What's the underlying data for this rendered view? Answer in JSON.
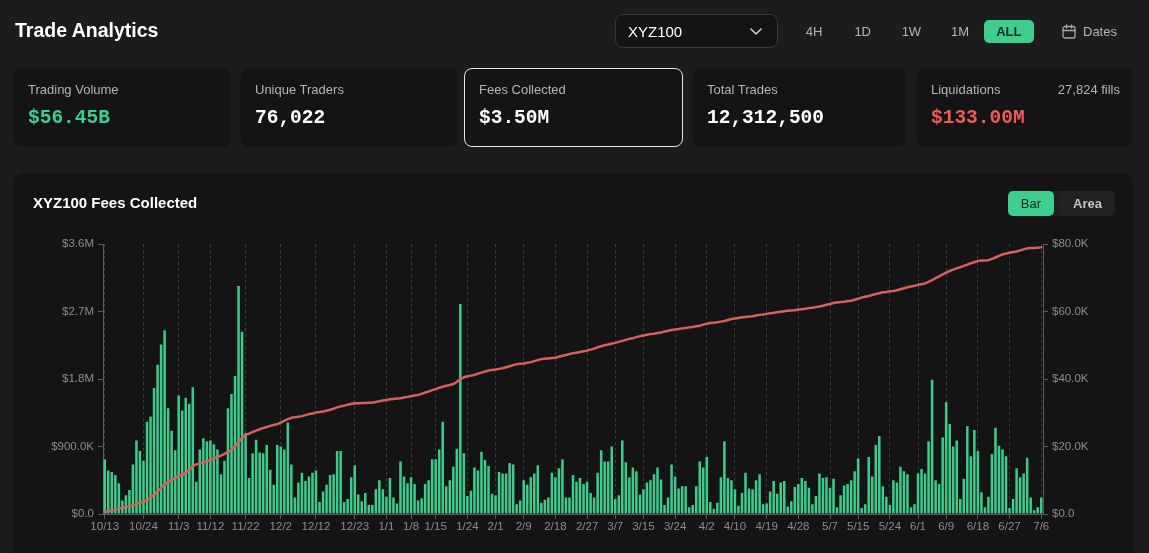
{
  "chart_data": [
    {
      "type": "other",
      "title": "Trade Analytics",
      "annotations": [
        "XYZ100",
        "4H",
        "1D",
        "1W",
        "1M",
        "ALL",
        "Dates"
      ]
    },
    {
      "type": "other",
      "title": "Trading Volume",
      "annotations": [
        "$56.45B"
      ]
    },
    {
      "type": "other",
      "title": "Unique Traders",
      "annotations": [
        "76,022"
      ]
    },
    {
      "type": "other",
      "title": "Fees Collected",
      "annotations": [
        "$3.50M"
      ]
    },
    {
      "type": "other",
      "title": "Total Trades",
      "annotations": [
        "12,312,500"
      ]
    },
    {
      "type": "other",
      "title": "Liquidations",
      "subtitle": "27,824 fills",
      "annotations": [
        "$133.00M"
      ]
    },
    {
      "type": "bar",
      "title": "XYZ100 Fees Collected",
      "annotations": [
        "Bar",
        "Area"
      ],
      "categories": [
        "10/13",
        null,
        null,
        null,
        null,
        null,
        null,
        null,
        null,
        null,
        null,
        "10/24",
        null,
        null,
        null,
        null,
        null,
        null,
        null,
        null,
        null,
        "11/3",
        null,
        null,
        null,
        null,
        null,
        null,
        null,
        null,
        "11/12",
        null,
        null,
        null,
        null,
        null,
        null,
        null,
        null,
        null,
        "11/22",
        null,
        null,
        null,
        null,
        null,
        null,
        null,
        null,
        null,
        "12/2",
        null,
        null,
        null,
        null,
        null,
        null,
        null,
        null,
        null,
        "12/12",
        null,
        null,
        null,
        null,
        null,
        null,
        null,
        null,
        null,
        null,
        "12/23",
        null,
        null,
        null,
        null,
        null,
        null,
        null,
        null,
        "1/1",
        null,
        null,
        null,
        null,
        null,
        null,
        "1/8",
        null,
        null,
        null,
        null,
        null,
        null,
        "1/15",
        null,
        null,
        null,
        null,
        null,
        null,
        null,
        null,
        "1/24",
        null,
        null,
        null,
        null,
        null,
        null,
        null,
        "2/1",
        null,
        null,
        null,
        null,
        null,
        null,
        null,
        "2/9",
        null,
        null,
        null,
        null,
        null,
        null,
        null,
        null,
        "2/18",
        null,
        null,
        null,
        null,
        null,
        null,
        null,
        null,
        "2/27",
        null,
        null,
        null,
        null,
        null,
        null,
        null,
        "3/7",
        null,
        null,
        null,
        null,
        null,
        null,
        null,
        "3/15",
        null,
        null,
        null,
        null,
        null,
        null,
        null,
        null,
        "3/24",
        null,
        null,
        null,
        null,
        null,
        null,
        null,
        null,
        "4/2",
        null,
        null,
        null,
        null,
        null,
        null,
        null,
        "4/10",
        null,
        null,
        null,
        null,
        null,
        null,
        null,
        null,
        "4/19",
        null,
        null,
        null,
        null,
        null,
        null,
        null,
        null,
        "4/28",
        null,
        null,
        null,
        null,
        null,
        null,
        null,
        null,
        "5/7",
        null,
        null,
        null,
        null,
        null,
        null,
        null,
        "5/15",
        null,
        null,
        null,
        null,
        null,
        null,
        null,
        null,
        "5/24",
        null,
        null,
        null,
        null,
        null,
        null,
        null,
        "6/1",
        null,
        null,
        null,
        null,
        null,
        null,
        null,
        "6/9",
        null,
        null,
        null,
        null,
        null,
        null,
        null,
        null,
        "6/18",
        null,
        null,
        null,
        null,
        null,
        null,
        null,
        null,
        "6/27",
        null,
        null,
        null,
        null,
        null,
        null,
        null,
        null,
        "7/6"
      ],
      "series": [
        {
          "type": "bar",
          "color": "#3bcb8b",
          "values": [
            730000,
            580000,
            560000,
            520000,
            410000,
            180000,
            250000,
            320000,
            660000,
            980000,
            840000,
            710000,
            1230000,
            1300000,
            1680000,
            1990000,
            2260000,
            2450000,
            1410000,
            1110000,
            850000,
            1580000,
            1380000,
            1550000,
            1470000,
            1690000,
            430000,
            860000,
            1010000,
            970000,
            980000,
            930000,
            860000,
            530000,
            710000,
            1410000,
            1600000,
            1840000,
            3040000,
            2430000,
            1080000,
            480000,
            810000,
            990000,
            820000,
            810000,
            920000,
            590000,
            390000,
            920000,
            900000,
            860000,
            1220000,
            660000,
            220000,
            420000,
            550000,
            440000,
            500000,
            550000,
            580000,
            160000,
            300000,
            390000,
            520000,
            530000,
            840000,
            840000,
            160000,
            200000,
            490000,
            650000,
            260000,
            170000,
            280000,
            120000,
            120000,
            330000,
            450000,
            330000,
            230000,
            480000,
            220000,
            140000,
            700000,
            500000,
            410000,
            490000,
            400000,
            180000,
            210000,
            400000,
            450000,
            730000,
            730000,
            860000,
            1230000,
            370000,
            450000,
            630000,
            870000,
            2800000,
            810000,
            240000,
            310000,
            620000,
            580000,
            830000,
            720000,
            640000,
            270000,
            250000,
            560000,
            540000,
            540000,
            680000,
            660000,
            130000,
            180000,
            450000,
            390000,
            490000,
            540000,
            650000,
            150000,
            190000,
            220000,
            550000,
            490000,
            610000,
            730000,
            220000,
            220000,
            520000,
            430000,
            480000,
            400000,
            430000,
            280000,
            220000,
            550000,
            850000,
            700000,
            700000,
            900000,
            200000,
            250000,
            980000,
            690000,
            490000,
            620000,
            570000,
            260000,
            330000,
            420000,
            450000,
            530000,
            620000,
            460000,
            120000,
            220000,
            660000,
            500000,
            340000,
            370000,
            370000,
            90000,
            120000,
            370000,
            700000,
            620000,
            760000,
            160000,
            70000,
            150000,
            490000,
            970000,
            480000,
            450000,
            330000,
            110000,
            280000,
            550000,
            340000,
            330000,
            450000,
            530000,
            130000,
            140000,
            300000,
            440000,
            270000,
            420000,
            440000,
            100000,
            170000,
            360000,
            400000,
            480000,
            440000,
            350000,
            130000,
            240000,
            540000,
            480000,
            490000,
            350000,
            470000,
            90000,
            250000,
            380000,
            400000,
            450000,
            570000,
            740000,
            80000,
            130000,
            760000,
            500000,
            920000,
            1040000,
            370000,
            230000,
            120000,
            450000,
            420000,
            630000,
            570000,
            530000,
            90000,
            130000,
            540000,
            600000,
            540000,
            970000,
            1790000,
            450000,
            400000,
            1020000,
            1490000,
            1200000,
            900000,
            980000,
            200000,
            470000,
            1170000,
            770000,
            1120000,
            840000,
            290000,
            90000,
            230000,
            800000,
            1150000,
            910000,
            860000,
            770000,
            80000,
            200000,
            610000,
            490000,
            540000,
            750000,
            220000,
            50000,
            90000,
            220000
          ]
        },
        {
          "type": "line",
          "color": "#d95f5d",
          "axis": "y2",
          "values": [
            500,
            800,
            1000,
            1300,
            1600,
            1800,
            2100,
            2300,
            2600,
            3000,
            3300,
            3700,
            4100,
            4900,
            5700,
            6600,
            7700,
            8800,
            9500,
            10100,
            10700,
            11200,
            11700,
            12200,
            13100,
            14200,
            14700,
            15000,
            15300,
            15600,
            16000,
            16500,
            16900,
            17300,
            17800,
            18400,
            19000,
            20000,
            21300,
            22600,
            23400,
            23800,
            24300,
            24700,
            25100,
            25500,
            25800,
            26100,
            26400,
            26600,
            27100,
            27600,
            28100,
            28500,
            28700,
            28800,
            29000,
            29300,
            29600,
            29800,
            30100,
            30200,
            30400,
            30600,
            30900,
            31200,
            31600,
            31900,
            32100,
            32400,
            32600,
            32800,
            32800,
            32900,
            32900,
            33000,
            33000,
            33200,
            33400,
            33600,
            33800,
            34000,
            34100,
            34200,
            34300,
            34500,
            34700,
            34900,
            35100,
            35300,
            35600,
            36000,
            36300,
            36700,
            37000,
            37400,
            37700,
            38000,
            38200,
            38500,
            39100,
            40000,
            40500,
            40800,
            41000,
            41200,
            41600,
            41900,
            42200,
            42500,
            42700,
            42800,
            43000,
            43200,
            43500,
            43800,
            44100,
            44400,
            44500,
            44600,
            44800,
            45000,
            45300,
            45600,
            45900,
            46000,
            46100,
            46200,
            46300,
            46600,
            46900,
            47100,
            47400,
            47600,
            47800,
            48000,
            48200,
            48400,
            48700,
            49000,
            49400,
            49700,
            50000,
            50200,
            50500,
            50700,
            51000,
            51300,
            51600,
            51900,
            52100,
            52400,
            52700,
            52900,
            53100,
            53300,
            53400,
            53600,
            53800,
            54100,
            54300,
            54500,
            54700,
            54800,
            55000,
            55100,
            55300,
            55400,
            55600,
            55800,
            56100,
            56400,
            56600,
            56700,
            56800,
            57000,
            57200,
            57500,
            57800,
            57900,
            58100,
            58300,
            58400,
            58500,
            58600,
            58800,
            59000,
            59100,
            59300,
            59500,
            59600,
            59800,
            59900,
            60100,
            60200,
            60300,
            60400,
            60600,
            60700,
            60800,
            61000,
            61100,
            61300,
            61500,
            61700,
            62000,
            62200,
            62500,
            62700,
            62800,
            62900,
            63100,
            63200,
            63500,
            63800,
            64100,
            64400,
            64600,
            64900,
            65200,
            65400,
            65700,
            65800,
            66000,
            66100,
            66300,
            66600,
            66900,
            67200,
            67400,
            67600,
            67900,
            68100,
            68300,
            68800,
            69300,
            69900,
            70400,
            71000,
            71500,
            72000,
            72400,
            72800,
            73100,
            73500,
            73900,
            74300,
            74600,
            75000,
            75100,
            75100,
            75200,
            75600,
            76000,
            76500,
            76900,
            77200,
            77400,
            77600,
            77800,
            78100,
            78400,
            78700,
            78800,
            78800,
            78900,
            79000
          ]
        }
      ],
      "ylim": [
        0,
        3600000
      ],
      "yticks": [
        {
          "value": 0,
          "label": "$0.0"
        },
        {
          "value": 900000,
          "label": "$900.0K"
        },
        {
          "value": 1800000,
          "label": "$1.8M"
        },
        {
          "value": 2700000,
          "label": "$2.7M"
        },
        {
          "value": 3600000,
          "label": "$3.6M"
        }
      ],
      "y2lim": [
        0,
        80000
      ],
      "y2ticks": [
        {
          "value": 0,
          "label": "$0.0"
        },
        {
          "value": 20000,
          "label": "$20.0K"
        },
        {
          "value": 40000,
          "label": "$40.0K"
        },
        {
          "value": 60000,
          "label": "$60.0K"
        },
        {
          "value": 80000,
          "label": "$80.0K"
        }
      ],
      "grid": "x",
      "marker": "none"
    }
  ]
}
